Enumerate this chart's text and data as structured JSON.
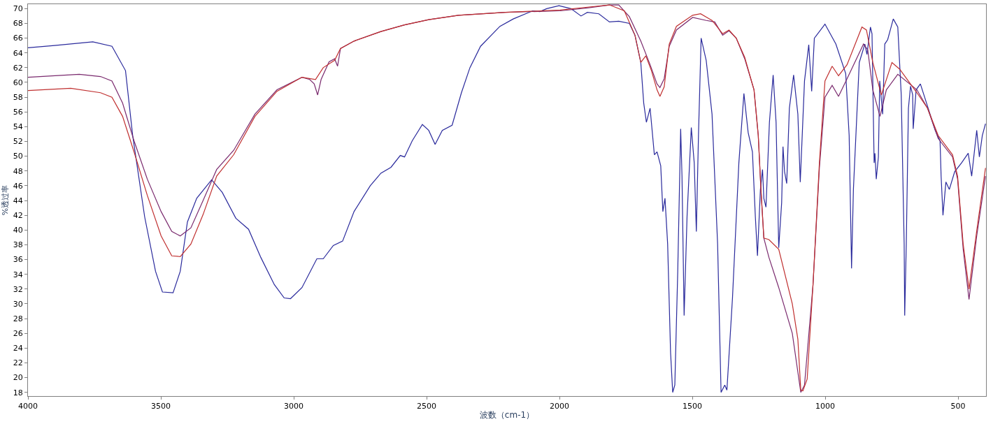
{
  "chart_data": {
    "type": "line",
    "xlabel": "波数（cm-1）",
    "ylabel": "%透过率",
    "xlim": [
      4000,
      395
    ],
    "ylim": [
      17.5,
      70.6
    ],
    "xticks": [
      4000,
      3500,
      3000,
      2500,
      2000,
      1500,
      1000,
      500
    ],
    "yticks": [
      18,
      20,
      22,
      24,
      26,
      28,
      30,
      32,
      34,
      36,
      38,
      40,
      42,
      44,
      46,
      48,
      50,
      52,
      54,
      56,
      58,
      60,
      62,
      64,
      66,
      68,
      70
    ],
    "marker": "none",
    "line_style": "solid",
    "series": [
      {
        "color": "#2a2a9c",
        "x": [
          4000,
          3900,
          3756,
          3684,
          3633,
          3606,
          3561,
          3520,
          3494,
          3454,
          3427,
          3400,
          3365,
          3309,
          3269,
          3218,
          3170,
          3124,
          3073,
          3036,
          3012,
          2969,
          2913,
          2889,
          2851,
          2816,
          2773,
          2712,
          2672,
          2634,
          2599,
          2583,
          2554,
          2516,
          2492,
          2468,
          2441,
          2404,
          2369,
          2337,
          2297,
          2224,
          2174,
          2101,
          2074,
          2048,
          2002,
          1957,
          1919,
          1895,
          1852,
          1812,
          1777,
          1737,
          1716,
          1694,
          1683,
          1673,
          1659,
          1643,
          1633,
          1619,
          1611,
          1603,
          1593,
          1582,
          1574,
          1566,
          1555,
          1544,
          1539,
          1531,
          1520,
          1504,
          1493,
          1485,
          1477,
          1467,
          1448,
          1426,
          1405,
          1392,
          1378,
          1370,
          1349,
          1325,
          1306,
          1290,
          1274,
          1263,
          1255,
          1244,
          1236,
          1231,
          1223,
          1210,
          1196,
          1185,
          1175,
          1164,
          1159,
          1153,
          1145,
          1135,
          1119,
          1103,
          1094,
          1078,
          1062,
          1051,
          1041,
          1001,
          960,
          923,
          910,
          901,
          894,
          872,
          851,
          843,
          830,
          824,
          816,
          813,
          808,
          800,
          795,
          784,
          776,
          765,
          744,
          727,
          714,
          703,
          701,
          695,
          687,
          679,
          671,
          669,
          658,
          642,
          626,
          586,
          568,
          564,
          557,
          546,
          533,
          513,
          487,
          462,
          449,
          430,
          420,
          409,
          397
        ],
        "values": [
          64.7,
          65.0,
          65.5,
          64.9,
          61.6,
          52.8,
          41.8,
          34.4,
          31.6,
          31.5,
          34.4,
          41.1,
          44.3,
          46.8,
          45.1,
          41.6,
          40.1,
          36.3,
          32.6,
          30.8,
          30.7,
          32.2,
          36.1,
          36.1,
          37.9,
          38.5,
          42.5,
          46.0,
          47.7,
          48.5,
          50.1,
          49.9,
          52.1,
          54.3,
          53.5,
          51.6,
          53.5,
          54.2,
          58.6,
          62.0,
          64.9,
          67.6,
          68.6,
          69.7,
          69.6,
          70.0,
          70.4,
          70.0,
          69.0,
          69.5,
          69.3,
          68.2,
          68.3,
          68.0,
          66.4,
          62.7,
          57.2,
          54.6,
          56.5,
          50.2,
          50.6,
          48.7,
          42.5,
          44.3,
          38.1,
          23.4,
          18.0,
          19.0,
          34.4,
          53.7,
          47.3,
          28.4,
          41.8,
          53.9,
          49.1,
          39.8,
          52.8,
          66.0,
          63.0,
          55.7,
          38.1,
          18.0,
          19.0,
          18.3,
          30.8,
          49.1,
          58.5,
          53.2,
          50.6,
          41.8,
          36.5,
          45.5,
          48.2,
          44.3,
          43.1,
          54.6,
          61.0,
          54.6,
          37.6,
          43.7,
          51.3,
          47.9,
          46.3,
          56.5,
          61.0,
          55.7,
          46.5,
          60.2,
          65.1,
          58.8,
          66.0,
          67.9,
          65.2,
          61.2,
          52.8,
          34.8,
          45.5,
          62.7,
          65.2,
          63.8,
          67.5,
          66.6,
          49.1,
          50.4,
          46.9,
          49.9,
          60.2,
          55.7,
          65.2,
          65.8,
          68.6,
          67.5,
          58.3,
          38.1,
          28.4,
          38.1,
          56.5,
          59.5,
          58.3,
          53.7,
          59.0,
          59.8,
          58.0,
          53.5,
          52.1,
          47.3,
          42.0,
          46.5,
          45.5,
          47.9,
          49.1,
          50.4,
          47.3,
          53.5,
          49.9,
          52.8,
          54.4
        ]
      },
      {
        "color": "#7a2a6e",
        "x": [
          4000,
          3807,
          3727,
          3684,
          3644,
          3601,
          3551,
          3499,
          3459,
          3427,
          3387,
          3341,
          3290,
          3226,
          3146,
          3063,
          2969,
          2940,
          2923,
          2910,
          2897,
          2867,
          2846,
          2835,
          2824,
          2773,
          2672,
          2583,
          2492,
          2380,
          2203,
          1997,
          1895,
          1812,
          1777,
          1737,
          1694,
          1659,
          1633,
          1622,
          1606,
          1587,
          1560,
          1499,
          1448,
          1416,
          1386,
          1362,
          1335,
          1303,
          1268,
          1252,
          1242,
          1231,
          1212,
          1175,
          1124,
          1092,
          1078,
          1046,
          1022,
          1001,
          974,
          950,
          918,
          856,
          840,
          821,
          794,
          770,
          727,
          655,
          615,
          575,
          521,
          502,
          481,
          459,
          430,
          397
        ],
        "values": [
          60.7,
          61.1,
          60.8,
          60.2,
          57.2,
          52.1,
          46.9,
          42.5,
          39.8,
          39.2,
          40.3,
          44.0,
          48.2,
          50.8,
          55.7,
          59.0,
          60.7,
          60.4,
          59.8,
          58.3,
          60.4,
          62.8,
          63.2,
          62.2,
          64.6,
          65.6,
          66.9,
          67.8,
          68.5,
          69.1,
          69.5,
          69.7,
          70.1,
          70.5,
          70.5,
          68.9,
          65.6,
          62.4,
          59.8,
          59.3,
          60.5,
          64.9,
          67.1,
          68.8,
          68.4,
          68.2,
          66.4,
          67.0,
          66.0,
          63.2,
          59.0,
          52.8,
          45.5,
          38.9,
          36.3,
          32.2,
          26.0,
          18.0,
          19.0,
          32.6,
          48.4,
          58.0,
          59.6,
          58.1,
          60.5,
          65.2,
          64.4,
          59.0,
          55.4,
          59.0,
          61.1,
          59.0,
          56.5,
          52.4,
          49.9,
          46.9,
          37.4,
          30.6,
          39.2,
          47.3
        ]
      },
      {
        "color": "#c03030",
        "x": [
          4000,
          3839,
          3727,
          3684,
          3644,
          3601,
          3551,
          3499,
          3459,
          3427,
          3387,
          3341,
          3290,
          3226,
          3146,
          3063,
          2969,
          2918,
          2889,
          2846,
          2824,
          2773,
          2672,
          2583,
          2492,
          2380,
          2203,
          1997,
          1895,
          1812,
          1756,
          1716,
          1694,
          1675,
          1654,
          1633,
          1622,
          1606,
          1587,
          1560,
          1499,
          1469,
          1426,
          1386,
          1362,
          1335,
          1303,
          1268,
          1252,
          1242,
          1231,
          1212,
          1175,
          1124,
          1103,
          1092,
          1084,
          1068,
          1046,
          1022,
          1001,
          974,
          950,
          918,
          862,
          845,
          821,
          789,
          749,
          720,
          655,
          615,
          575,
          521,
          502,
          481,
          459,
          430,
          397
        ],
        "values": [
          58.9,
          59.2,
          58.6,
          58.0,
          55.4,
          50.6,
          44.7,
          39.2,
          36.5,
          36.4,
          38.1,
          42.1,
          47.3,
          50.2,
          55.4,
          58.8,
          60.7,
          60.4,
          62.0,
          63.0,
          64.6,
          65.6,
          66.9,
          67.8,
          68.5,
          69.1,
          69.5,
          69.8,
          70.2,
          70.5,
          69.7,
          66.4,
          62.7,
          63.6,
          61.6,
          59.0,
          58.1,
          59.4,
          65.2,
          67.6,
          69.1,
          69.3,
          68.4,
          66.6,
          67.1,
          66.0,
          63.4,
          59.0,
          52.8,
          45.5,
          38.9,
          38.7,
          37.4,
          30.0,
          25.2,
          18.3,
          18.2,
          19.8,
          32.6,
          49.1,
          60.2,
          62.2,
          60.9,
          62.4,
          67.5,
          67.1,
          62.7,
          58.3,
          62.7,
          61.8,
          58.6,
          56.5,
          52.8,
          50.2,
          47.3,
          38.1,
          32.0,
          39.9,
          48.4
        ]
      }
    ]
  }
}
